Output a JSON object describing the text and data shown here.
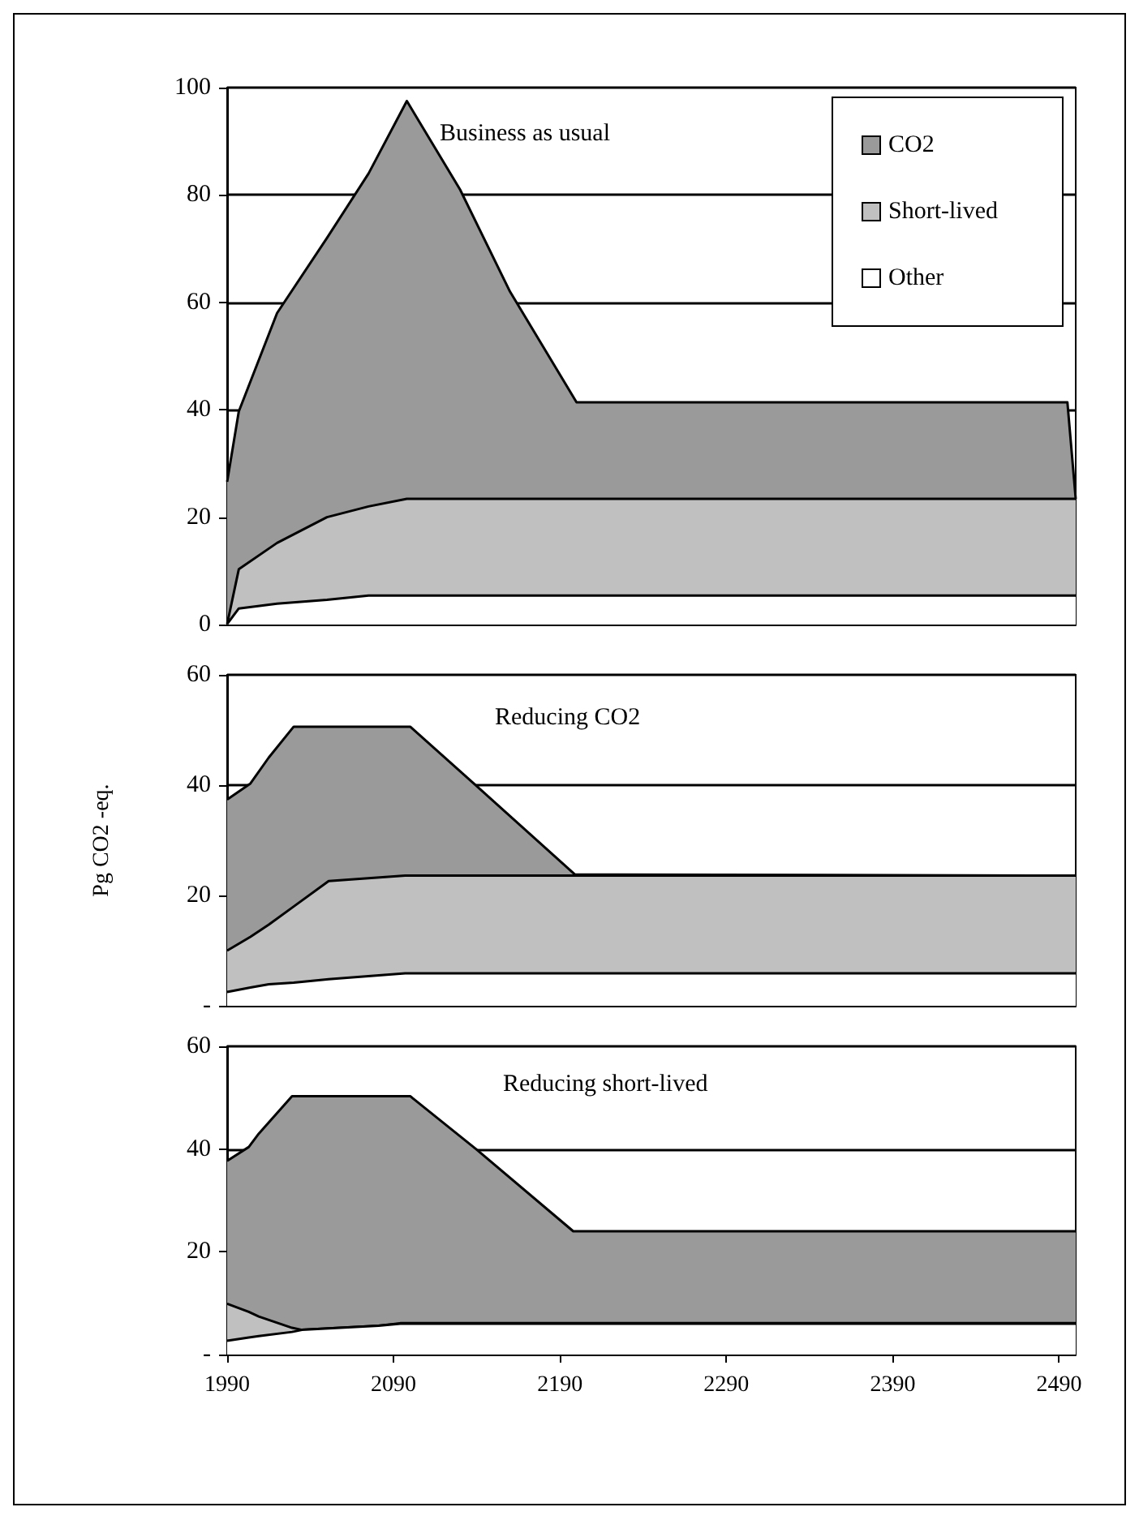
{
  "chart_data": [
    {
      "type": "area",
      "title": "Business as usual",
      "x": [
        1990,
        1997,
        2020,
        2050,
        2075,
        2098,
        2130,
        2160,
        2200,
        2495,
        2500
      ],
      "stacked": true,
      "series": [
        {
          "name": "Other",
          "color": "#ffffff",
          "values": [
            0.1,
            3.0,
            3.9,
            4.6,
            5.4,
            5.4,
            5.4,
            5.4,
            5.4,
            5.4,
            5.4
          ]
        },
        {
          "name": "Short-lived",
          "color": "#c0c0c0",
          "values": [
            0,
            7.3,
            11.3,
            15.4,
            16.6,
            18.0,
            18.0,
            18.0,
            18.0,
            18.0,
            18.0
          ]
        },
        {
          "name": "CO2",
          "color": "#9a9a9a",
          "values": [
            26.5,
            29.4,
            42.8,
            52.0,
            62.0,
            74.1,
            57.6,
            38.6,
            18.0,
            18.0,
            0
          ]
        }
      ],
      "xlim": [
        1990,
        2500
      ],
      "ylim": [
        0,
        100
      ],
      "yticks": [
        0,
        20,
        40,
        60,
        80,
        100
      ],
      "grid": "y",
      "legend": "top right",
      "tick_labels": "y"
    },
    {
      "type": "area",
      "title": "Reducing CO2",
      "ylabel": "Pg CO2 -eq.",
      "x": [
        1990,
        2004,
        2015,
        2030,
        2051,
        2097,
        2100,
        2139,
        2199,
        2500
      ],
      "stacked": true,
      "series": [
        {
          "color": "#ffffff",
          "values": [
            2.5,
            3.3,
            3.9,
            4.2,
            4.8,
            5.9,
            5.9,
            5.9,
            5.9,
            5.9
          ]
        },
        {
          "color": "#c0c0c0",
          "values": [
            7.5,
            9.2,
            10.8,
            13.8,
            17.8,
            17.7,
            17.7,
            17.7,
            17.7,
            17.7
          ]
        },
        {
          "color": "#9a9a9a",
          "values": [
            27.4,
            27.8,
            30.3,
            32.6,
            28.0,
            27.0,
            27.0,
            16.5,
            0.2,
            0
          ]
        }
      ],
      "xlim": [
        1990,
        2500
      ],
      "ylim": [
        0,
        60
      ],
      "yticks": [
        {
          "value": 0,
          "label": "-"
        },
        20,
        40,
        60
      ],
      "grid": "y",
      "legend": false,
      "tick_labels": "y"
    },
    {
      "type": "area",
      "title": "Reducing short-lived",
      "x": [
        1990,
        2003,
        2009,
        2029,
        2035,
        2081,
        2094,
        2100,
        2140,
        2198,
        2500
      ],
      "stacked": true,
      "series": [
        {
          "color": "#ffffff",
          "values": [
            2.7,
            3.3,
            3.6,
            4.4,
            4.8,
            5.6,
            6.0,
            6.0,
            6.0,
            6.0,
            6.0
          ]
        },
        {
          "color": "#c0c0c0",
          "values": [
            7.2,
            5.0,
            3.8,
            0.8,
            0,
            0,
            0.1,
            0.1,
            0.1,
            0.1,
            0.1
          ]
        },
        {
          "color": "#9a9a9a",
          "values": [
            27.8,
            32.1,
            35.6,
            45.1,
            45.5,
            44.7,
            44.2,
            44.2,
            33.8,
            17.9,
            17.9
          ]
        }
      ],
      "xlim": [
        1990,
        2500
      ],
      "xticks": [
        1990,
        2090,
        2190,
        2290,
        2390,
        2490
      ],
      "ylim": [
        0,
        60
      ],
      "yticks": [
        {
          "value": 0,
          "label": "-"
        },
        20,
        40,
        60
      ],
      "grid": "y",
      "legend": false
    }
  ]
}
